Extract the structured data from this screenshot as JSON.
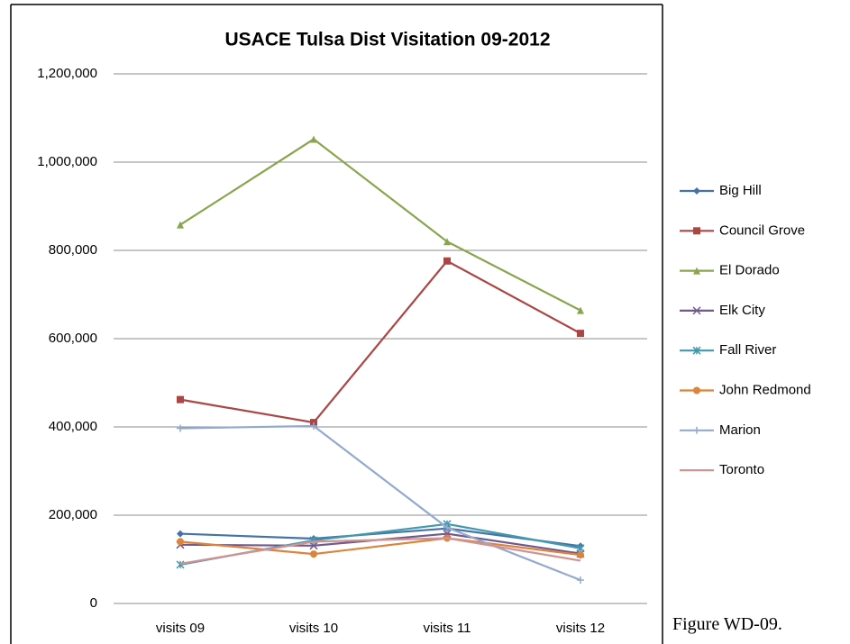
{
  "chart_data": {
    "type": "line",
    "title": "USACE Tulsa Dist Visitation 09-2012",
    "categories": [
      "visits 09",
      "visits 10",
      "visits 11",
      "visits 12"
    ],
    "series": [
      {
        "name": "Big Hill",
        "color": "#4572a7",
        "marker": "diamond",
        "values": [
          158000,
          147000,
          170000,
          130000
        ]
      },
      {
        "name": "Council Grove",
        "color": "#aa4643",
        "marker": "square",
        "values": [
          462000,
          410000,
          776000,
          612000
        ]
      },
      {
        "name": "El Dorado",
        "color": "#89a54e",
        "marker": "triangle",
        "values": [
          858000,
          1052000,
          820000,
          664000
        ]
      },
      {
        "name": "Elk City",
        "color": "#71588f",
        "marker": "x",
        "values": [
          133000,
          131000,
          158000,
          113000
        ]
      },
      {
        "name": "Fall River",
        "color": "#4198af",
        "marker": "star",
        "values": [
          88000,
          143000,
          180000,
          125000
        ]
      },
      {
        "name": "John Redmond",
        "color": "#db843d",
        "marker": "circle",
        "values": [
          140000,
          112000,
          148000,
          110000
        ]
      },
      {
        "name": "Marion",
        "color": "#93a9cf",
        "marker": "plus",
        "values": [
          397000,
          402000,
          172000,
          53000
        ]
      },
      {
        "name": "Toronto",
        "color": "#d19392",
        "marker": "none",
        "values": [
          90000,
          140000,
          148000,
          97000
        ]
      }
    ],
    "ylim": [
      0,
      1200000
    ],
    "yticks": [
      0,
      {
        "value": 200000,
        "label": "200,000"
      },
      {
        "value": 400000,
        "label": "400,000"
      },
      {
        "value": 600000,
        "label": "600,000"
      },
      {
        "value": 800000,
        "label": "800,000"
      },
      {
        "value": 1000000,
        "label": "1,000,000"
      },
      {
        "value": 1200000,
        "label": "1,200,000"
      }
    ],
    "grid": true,
    "legend": "right"
  },
  "figure_caption": "Figure WD-09."
}
